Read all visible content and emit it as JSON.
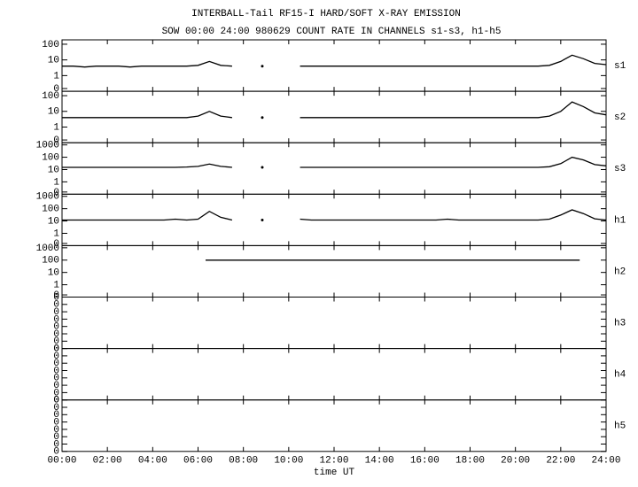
{
  "chart_data": {
    "type": "line",
    "title": "INTERBALL-Tail RF15-I HARD/SOFT X-RAY EMISSION",
    "subtitle": "SOW 00:00 24:00 980629  COUNT RATE IN CHANNELS s1-s3, h1-h5",
    "xlabel": "time UT",
    "color": "#000000",
    "xlim": [
      "00:00",
      "24:00"
    ],
    "xticks": [
      "00:00",
      "02:00",
      "04:00",
      "06:00",
      "08:00",
      "10:00",
      "12:00",
      "14:00",
      "16:00",
      "18:00",
      "20:00",
      "22:00",
      "24:00"
    ],
    "x": [
      "00:00",
      "00:30",
      "01:00",
      "01:30",
      "02:00",
      "02:30",
      "03:00",
      "03:30",
      "04:00",
      "04:30",
      "05:00",
      "05:30",
      "06:00",
      "06:30",
      "07:00",
      "07:30",
      "08:00",
      "08:30",
      "08:50",
      "09:00",
      "09:30",
      "10:00",
      "10:30",
      "11:00",
      "11:30",
      "12:00",
      "12:30",
      "13:00",
      "13:30",
      "14:00",
      "14:30",
      "15:00",
      "15:30",
      "16:00",
      "16:30",
      "17:00",
      "17:30",
      "18:00",
      "18:30",
      "19:00",
      "19:30",
      "20:00",
      "20:30",
      "21:00",
      "21:30",
      "22:00",
      "22:30",
      "23:00",
      "23:30",
      "24:00"
    ],
    "panels": [
      {
        "name": "s1",
        "log": true,
        "ylim": [
          0.1,
          190
        ],
        "yticks": [
          {
            "value": 0.15,
            "label": "0"
          },
          1,
          10,
          100
        ],
        "values": [
          4,
          4,
          3.5,
          4,
          4,
          4,
          3.5,
          4,
          4,
          4,
          4,
          4,
          4.5,
          8,
          4.5,
          4,
          null,
          null,
          4,
          null,
          null,
          null,
          4,
          4,
          4,
          4,
          4,
          4,
          4,
          4,
          4,
          4,
          4,
          4,
          4,
          4,
          4,
          4,
          4,
          4,
          4,
          4,
          4,
          4,
          4.5,
          8,
          20,
          12,
          6,
          5
        ]
      },
      {
        "name": "s2",
        "log": true,
        "ylim": [
          0.1,
          190
        ],
        "yticks": [
          {
            "value": 0.15,
            "label": "0"
          },
          1,
          10,
          100
        ],
        "values": [
          4,
          4,
          4,
          4,
          4,
          4,
          4,
          4,
          4,
          4,
          4,
          4,
          5,
          10,
          5,
          4,
          null,
          null,
          4,
          null,
          null,
          null,
          4,
          4,
          4,
          4,
          4,
          4,
          4,
          4,
          4,
          4,
          4,
          4,
          4,
          4,
          4,
          4,
          4,
          4,
          4,
          4,
          4,
          4,
          5,
          10,
          40,
          20,
          8,
          6
        ]
      },
      {
        "name": "s3",
        "log": true,
        "ylim": [
          0.1,
          1500
        ],
        "yticks": [
          {
            "value": 0.15,
            "label": "0"
          },
          1,
          10,
          100,
          1000
        ],
        "values": [
          15,
          15,
          15,
          15,
          15,
          15,
          15,
          15,
          15,
          15,
          15,
          16,
          18,
          28,
          18,
          15,
          null,
          null,
          15,
          null,
          null,
          null,
          15,
          15,
          15,
          15,
          15,
          15,
          15,
          15,
          15,
          15,
          15,
          15,
          15,
          15,
          15,
          15,
          15,
          15,
          15,
          15,
          15,
          15,
          17,
          30,
          100,
          60,
          25,
          20
        ]
      },
      {
        "name": "h1",
        "log": true,
        "ylim": [
          0.1,
          1500
        ],
        "yticks": [
          {
            "value": 0.15,
            "label": "0"
          },
          1,
          10,
          100,
          1000
        ],
        "values": [
          12,
          12,
          12,
          12,
          12,
          12,
          12,
          12,
          12,
          12,
          14,
          12,
          14,
          60,
          20,
          12,
          null,
          null,
          12,
          null,
          null,
          null,
          14,
          12,
          12,
          12,
          12,
          12,
          12,
          12,
          12,
          12,
          12,
          12,
          12,
          14,
          12,
          12,
          12,
          12,
          12,
          12,
          12,
          12,
          14,
          30,
          80,
          40,
          15,
          12
        ]
      },
      {
        "name": "h2",
        "log": true,
        "ylim": [
          0.1,
          1500
        ],
        "yticks": [
          {
            "value": 0.15,
            "label": "0"
          },
          1,
          10,
          100,
          1000
        ],
        "x": [
          "06:20",
          "14:00",
          "22:20",
          "22:50"
        ],
        "values": [
          100,
          100,
          100,
          100
        ]
      },
      {
        "name": "h3",
        "log": false,
        "ylim": [
          0,
          0.0007
        ],
        "yticks": [
          0,
          {
            "value": 0.0001,
            "label": "0"
          },
          {
            "value": 0.0002,
            "label": "0"
          },
          {
            "value": 0.0003,
            "label": "0"
          },
          {
            "value": 0.0004,
            "label": "0"
          },
          {
            "value": 0.0005,
            "label": "0"
          },
          {
            "value": 0.0006,
            "label": "0"
          },
          {
            "value": 0.0007,
            "label": "0"
          }
        ]
      },
      {
        "name": "h4",
        "log": false,
        "ylim": [
          0,
          0.0007
        ],
        "yticks": [
          0,
          {
            "value": 0.0001,
            "label": "0"
          },
          {
            "value": 0.0002,
            "label": "0"
          },
          {
            "value": 0.0003,
            "label": "0"
          },
          {
            "value": 0.0004,
            "label": "0"
          },
          {
            "value": 0.0005,
            "label": "0"
          },
          {
            "value": 0.0006,
            "label": "0"
          },
          {
            "value": 0.0007,
            "label": "0"
          }
        ]
      },
      {
        "name": "h5",
        "log": false,
        "ylim": [
          0,
          0.0007
        ],
        "yticks": [
          0,
          {
            "value": 0.0001,
            "label": "0"
          },
          {
            "value": 0.0002,
            "label": "0"
          },
          {
            "value": 0.0003,
            "label": "0"
          },
          {
            "value": 0.0004,
            "label": "0"
          },
          {
            "value": 0.0005,
            "label": "0"
          },
          {
            "value": 0.0006,
            "label": "0"
          },
          {
            "value": 0.0007,
            "label": "0"
          }
        ]
      }
    ]
  }
}
